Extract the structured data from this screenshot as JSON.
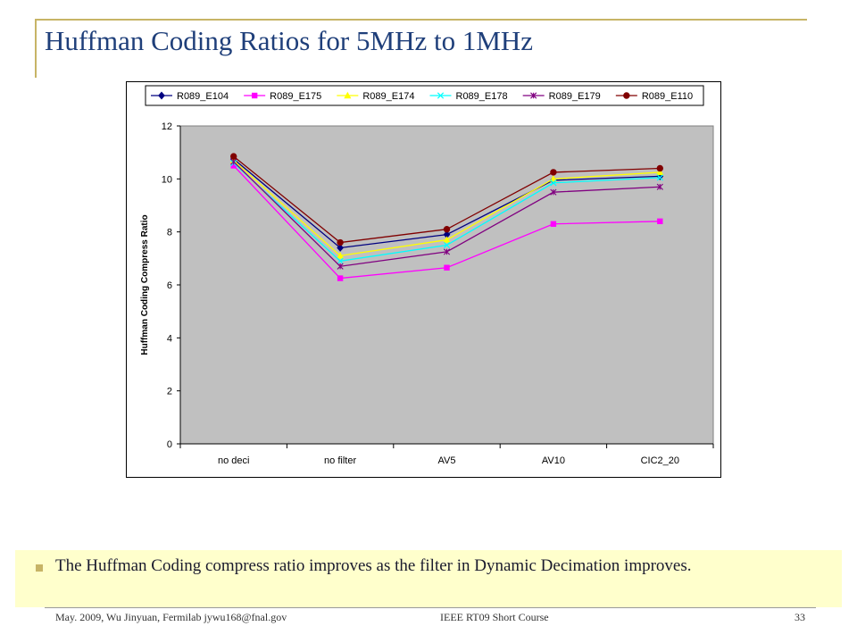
{
  "slide": {
    "title": "Huffman Coding Ratios for 5MHz to 1MHz",
    "callout": "The Huffman Coding compress ratio improves as the filter in Dynamic Decimation improves.",
    "footer": {
      "left": "May. 2009, Wu Jinyuan, Fermilab jywu168@fnal.gov",
      "center": "IEEE RT09 Short Course",
      "page": "33"
    },
    "colors": {
      "accent": "#c7b466",
      "title": "#1f3f7a",
      "callout_bg": "#ffffcc",
      "plot_bg": "#c0c0c0"
    }
  },
  "chart_data": {
    "type": "line",
    "title": "",
    "xlabel": "",
    "ylabel": "Huffman Coding Compress Ratio",
    "categories": [
      "no deci",
      "no filter",
      "AV5",
      "AV10",
      "CIC2_20"
    ],
    "ylim": [
      0,
      12
    ],
    "yticks": [
      "0",
      "2",
      "4",
      "6",
      "8",
      "10",
      "12"
    ],
    "grid": false,
    "legend_position": "top",
    "series": [
      {
        "name": "R089_E104",
        "values": [
          10.75,
          7.4,
          7.9,
          9.95,
          10.1
        ],
        "color": "#000080",
        "marker": "diamond"
      },
      {
        "name": "R089_E175",
        "values": [
          10.5,
          6.25,
          6.65,
          8.3,
          8.4
        ],
        "color": "#ff00ff",
        "marker": "square"
      },
      {
        "name": "R089_E174",
        "values": [
          10.7,
          7.1,
          7.7,
          10.0,
          10.25
        ],
        "color": "#ffff00",
        "marker": "triangle"
      },
      {
        "name": "R089_E178",
        "values": [
          10.6,
          6.9,
          7.5,
          9.85,
          10.05
        ],
        "color": "#00ffff",
        "marker": "x"
      },
      {
        "name": "R089_E179",
        "values": [
          10.65,
          6.7,
          7.25,
          9.5,
          9.7
        ],
        "color": "#800080",
        "marker": "star"
      },
      {
        "name": "R089_E110",
        "values": [
          10.85,
          7.6,
          8.1,
          10.25,
          10.4
        ],
        "color": "#800000",
        "marker": "circle"
      }
    ]
  }
}
